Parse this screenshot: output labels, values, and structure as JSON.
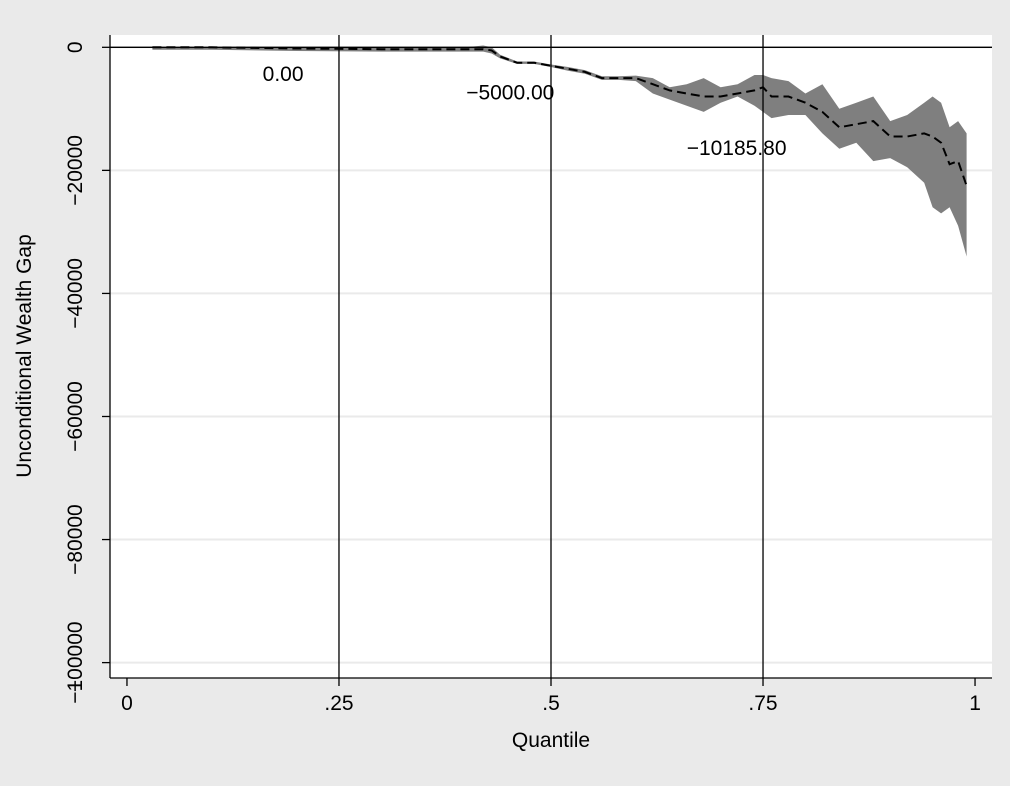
{
  "chart_data": {
    "type": "line",
    "title": "",
    "xlabel": "Quantile",
    "ylabel": "Unconditional Wealth Gap",
    "xlim": [
      -0.02,
      1.02
    ],
    "ylim": [
      -102500,
      2000
    ],
    "grid": true,
    "legend": "none",
    "x_ticks": [
      0,
      0.25,
      0.5,
      0.75,
      1
    ],
    "x_tick_labels": [
      "0",
      ".25",
      ".5",
      ".75",
      "1"
    ],
    "y_ticks": [
      0,
      -20000,
      -40000,
      -60000,
      -80000,
      -100000
    ],
    "y_tick_labels": [
      "0",
      "−20000",
      "−40000",
      "−60000",
      "−80000",
      "−100000"
    ],
    "y_axis_min_label": "−",
    "reference_lines": {
      "horizontal": [
        0
      ],
      "vertical": [
        0.25,
        0.5,
        0.75
      ]
    },
    "annotations": [
      {
        "text": "0.00",
        "x": 0.16,
        "y": -5500
      },
      {
        "text": "−5000.00",
        "x": 0.4,
        "y": -8500
      },
      {
        "text": "−10185.80",
        "x": 0.66,
        "y": -17500
      }
    ],
    "colors": {
      "band": "#7f7f7f",
      "estimate": "#000000",
      "gridline": "#eaeaea",
      "reference": "#000000",
      "plot_bg": "#ffffff",
      "outer_bg": "#eaeaea"
    },
    "series": [
      {
        "type": "line",
        "style": "dashed",
        "x": [
          0.03,
          0.1,
          0.2,
          0.3,
          0.4,
          0.42,
          0.43,
          0.44,
          0.46,
          0.48,
          0.5,
          0.52,
          0.54,
          0.56,
          0.58,
          0.6,
          0.62,
          0.64,
          0.66,
          0.68,
          0.7,
          0.72,
          0.74,
          0.75,
          0.76,
          0.78,
          0.8,
          0.82,
          0.84,
          0.86,
          0.88,
          0.9,
          0.92,
          0.94,
          0.95,
          0.96,
          0.97,
          0.98,
          0.99
        ],
        "y": [
          0,
          0,
          -200,
          -300,
          -300,
          -300,
          -500,
          -1500,
          -2500,
          -2500,
          -3000,
          -3500,
          -4000,
          -5000,
          -5000,
          -5000,
          -6000,
          -7000,
          -7500,
          -8000,
          -8000,
          -7500,
          -7000,
          -6500,
          -8000,
          -8000,
          -9000,
          -10500,
          -13000,
          -12500,
          -12000,
          -14500,
          -14500,
          -14000,
          -14500,
          -15500,
          -19000,
          -18500,
          -22500
        ]
      },
      {
        "type": "band",
        "x": [
          0.03,
          0.1,
          0.2,
          0.3,
          0.4,
          0.42,
          0.43,
          0.44,
          0.46,
          0.48,
          0.5,
          0.52,
          0.54,
          0.56,
          0.58,
          0.6,
          0.62,
          0.64,
          0.66,
          0.68,
          0.7,
          0.72,
          0.74,
          0.75,
          0.76,
          0.78,
          0.8,
          0.82,
          0.84,
          0.86,
          0.88,
          0.9,
          0.92,
          0.94,
          0.95,
          0.96,
          0.97,
          0.98,
          0.99
        ],
        "upper": [
          0,
          0,
          0,
          0,
          0,
          300,
          0,
          -1200,
          -2300,
          -2300,
          -2800,
          -3200,
          -3700,
          -4700,
          -4700,
          -4600,
          -5000,
          -6500,
          -6000,
          -5000,
          -6500,
          -6000,
          -4500,
          -4500,
          -5000,
          -5500,
          -7500,
          -6000,
          -10000,
          -9000,
          -8000,
          -12000,
          -11000,
          -9000,
          -8000,
          -9000,
          -13000,
          -12000,
          -14000
        ],
        "lower": [
          -400,
          -400,
          -600,
          -700,
          -700,
          -700,
          -1000,
          -1800,
          -2700,
          -2700,
          -3200,
          -3800,
          -4300,
          -5300,
          -5300,
          -5500,
          -7500,
          -8500,
          -9500,
          -10500,
          -9000,
          -8000,
          -9500,
          -10500,
          -11500,
          -11000,
          -11000,
          -14000,
          -16500,
          -15500,
          -18500,
          -18000,
          -19500,
          -22000,
          -26000,
          -27000,
          -26000,
          -29000,
          -34000
        ]
      }
    ]
  }
}
